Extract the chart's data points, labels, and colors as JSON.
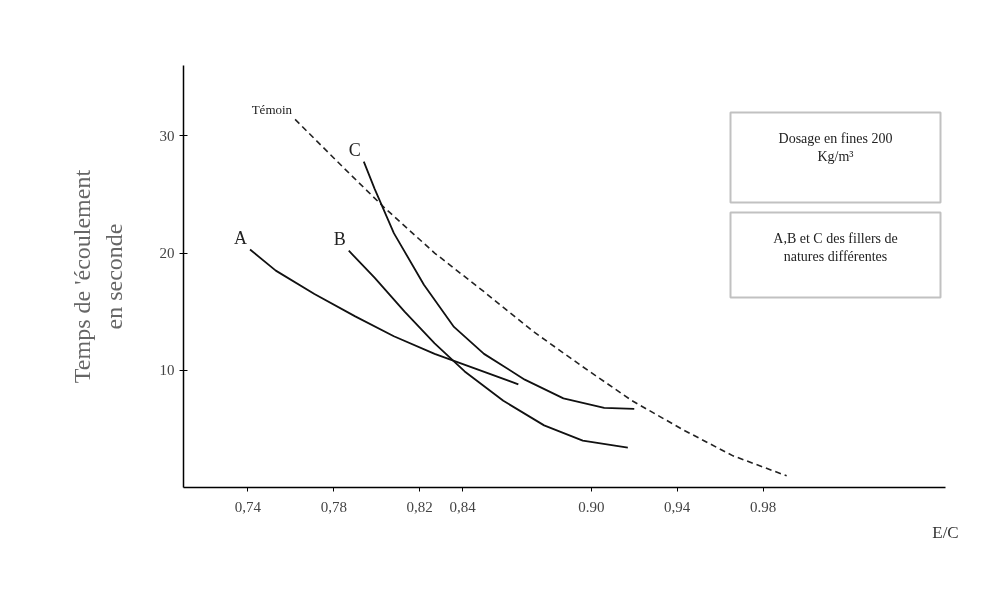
{
  "chart_data": {
    "type": "line",
    "xlabel": "E/C",
    "ylabel": "Temps de 'écoulement en seconde",
    "xlim": [
      0.71,
      1.065
    ],
    "ylim": [
      0,
      36
    ],
    "xticks": [
      {
        "value": 0.74,
        "label": "0,74"
      },
      {
        "value": 0.78,
        "label": "0,78"
      },
      {
        "value": 0.82,
        "label": "0,82"
      },
      {
        "value": 0.84,
        "label": "0,84"
      },
      {
        "value": 0.9,
        "label": "0.90"
      },
      {
        "value": 0.94,
        "label": "0,94"
      },
      {
        "value": 0.98,
        "label": "0.98"
      }
    ],
    "yticks": [
      10,
      20,
      30
    ],
    "grid": false,
    "legend": false,
    "marker": "none",
    "series": [
      {
        "name": "Témoin",
        "color": "#222222",
        "line_style": "dashed",
        "x": [
          0.762,
          0.785,
          0.804,
          0.827,
          0.85,
          0.873,
          0.896,
          0.919,
          0.943,
          0.966,
          0.991
        ],
        "values": [
          31.4,
          27.2,
          23.8,
          20.0,
          16.7,
          13.3,
          10.3,
          7.4,
          4.9,
          2.7,
          1.0
        ]
      },
      {
        "name": "A",
        "color": "#111111",
        "line_style": "solid",
        "x": [
          0.741,
          0.753,
          0.771,
          0.79,
          0.808,
          0.827,
          0.845,
          0.866
        ],
        "values": [
          20.3,
          18.5,
          16.5,
          14.6,
          12.9,
          11.4,
          10.2,
          8.8
        ]
      },
      {
        "name": "B",
        "color": "#111111",
        "line_style": "solid",
        "x": [
          0.787,
          0.799,
          0.813,
          0.827,
          0.841,
          0.859,
          0.878,
          0.896,
          0.917
        ],
        "values": [
          20.2,
          17.9,
          15.0,
          12.3,
          9.9,
          7.4,
          5.3,
          4.0,
          3.4
        ]
      },
      {
        "name": "C",
        "color": "#111111",
        "line_style": "solid",
        "x": [
          0.794,
          0.799,
          0.808,
          0.822,
          0.836,
          0.85,
          0.869,
          0.887,
          0.906,
          0.92
        ],
        "values": [
          27.8,
          25.5,
          21.7,
          17.3,
          13.7,
          11.4,
          9.2,
          7.6,
          6.8,
          6.7
        ]
      }
    ],
    "annotations": [
      "Dosage en fines 200 Kg/m³",
      "A,B et C des fillers de natures différentes"
    ]
  }
}
